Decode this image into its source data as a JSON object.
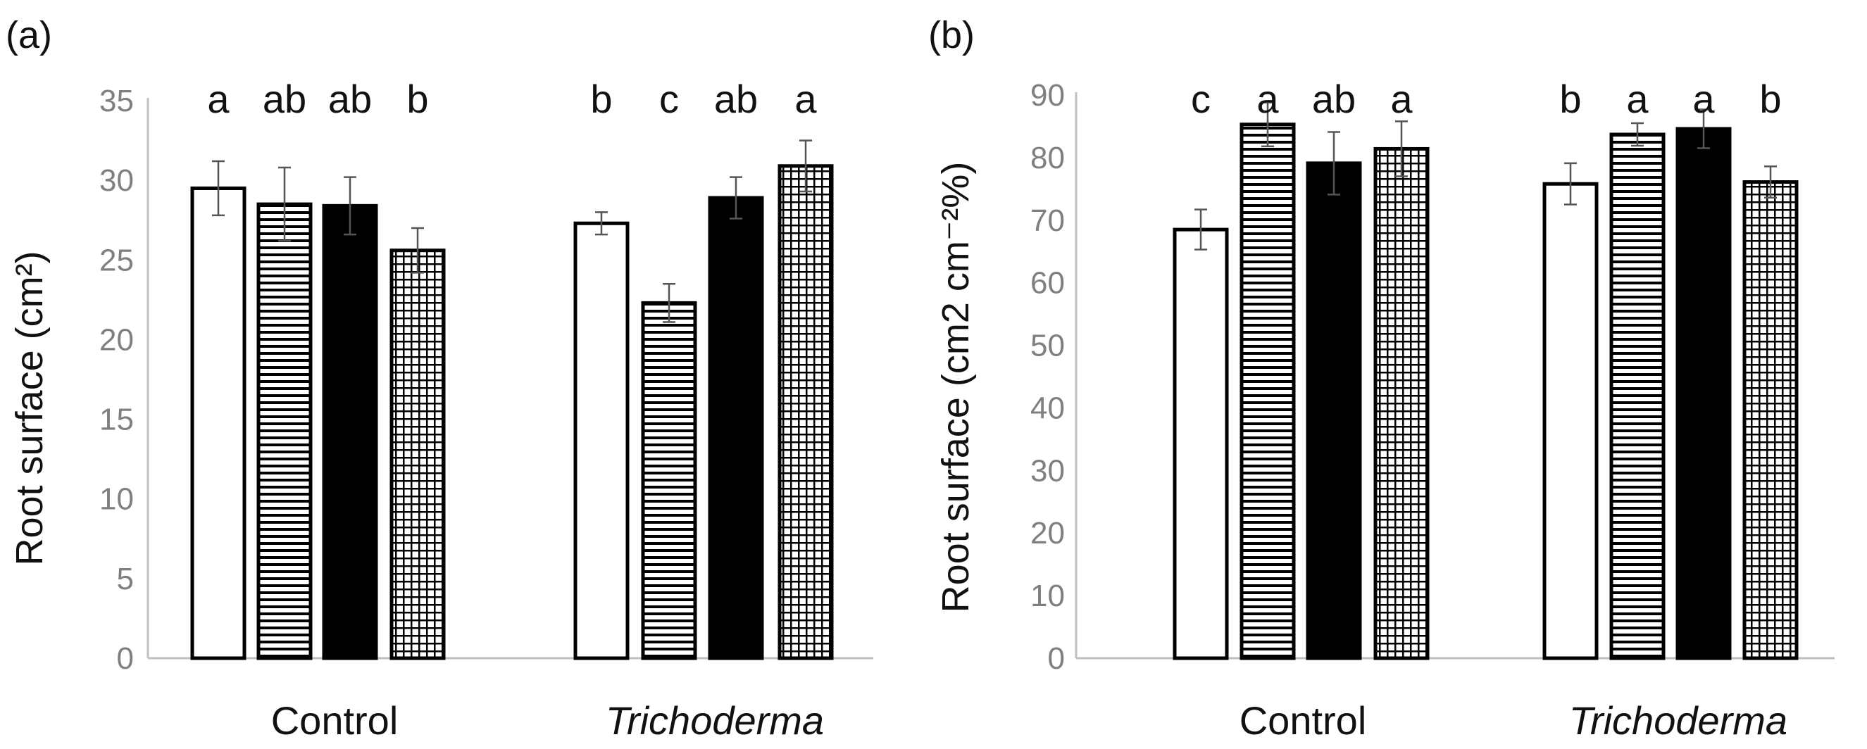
{
  "chart_data": [
    {
      "type": "bar",
      "panel_label": "(a)",
      "ylabel": "Root surface (cm²)",
      "ylim": [
        0,
        35
      ],
      "yticks": [
        0,
        5,
        10,
        15,
        20,
        25,
        30,
        35
      ],
      "categories": [
        "Control",
        "Trichoderma"
      ],
      "series": [
        {
          "name": "open",
          "pattern": "open",
          "values": [
            29.5,
            27.3
          ],
          "errors": [
            1.7,
            0.7
          ],
          "letters": [
            "a",
            "b"
          ]
        },
        {
          "name": "horizontal",
          "pattern": "horizontal",
          "values": [
            28.5,
            22.3
          ],
          "errors": [
            2.3,
            1.2
          ],
          "letters": [
            "ab",
            "c"
          ]
        },
        {
          "name": "solid",
          "pattern": "solid",
          "values": [
            28.4,
            28.9
          ],
          "errors": [
            1.8,
            1.3
          ],
          "letters": [
            "ab",
            "ab"
          ]
        },
        {
          "name": "grid",
          "pattern": "grid",
          "values": [
            25.6,
            30.9
          ],
          "errors": [
            1.4,
            1.6
          ],
          "letters": [
            "b",
            "a"
          ]
        }
      ]
    },
    {
      "type": "bar",
      "panel_label": "(b)",
      "ylabel": "Root surface (cm2 cm⁻²%)",
      "ylim": [
        0,
        90
      ],
      "yticks": [
        0,
        10,
        20,
        30,
        40,
        50,
        60,
        70,
        80,
        90
      ],
      "categories": [
        "Control",
        "Trichoderma"
      ],
      "series": [
        {
          "name": "open",
          "pattern": "open",
          "values": [
            68.5,
            75.8
          ],
          "errors": [
            3.2,
            3.3
          ],
          "letters": [
            "c",
            "b"
          ]
        },
        {
          "name": "horizontal",
          "pattern": "horizontal",
          "values": [
            85.3,
            83.7
          ],
          "errors": [
            3.5,
            1.8
          ],
          "letters": [
            "a",
            "a"
          ]
        },
        {
          "name": "solid",
          "pattern": "solid",
          "values": [
            79.1,
            84.6
          ],
          "errors": [
            5.0,
            3.1
          ],
          "letters": [
            "ab",
            "a"
          ]
        },
        {
          "name": "grid",
          "pattern": "grid",
          "values": [
            81.4,
            76.1
          ],
          "errors": [
            4.4,
            2.5
          ],
          "letters": [
            "a",
            "b"
          ]
        }
      ]
    }
  ],
  "colors": {
    "bar_stroke": "#000000",
    "axis": "#bfbfbf",
    "tick_text": "#7f7f7f"
  }
}
